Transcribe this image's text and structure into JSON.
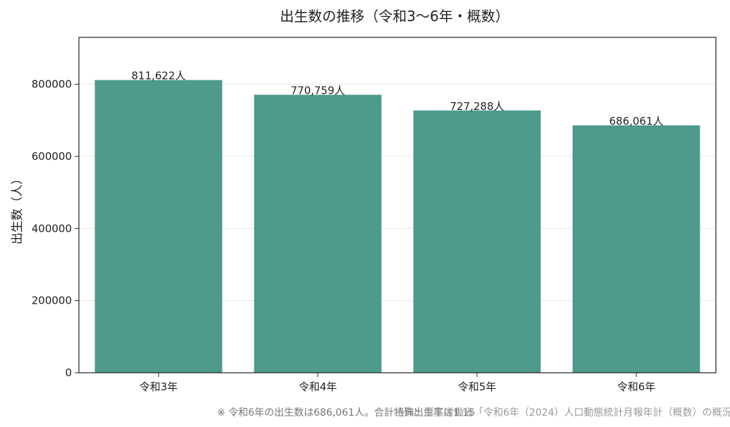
{
  "chart_data": {
    "type": "bar",
    "title": "出生数の推移（令和3〜6年・概数）",
    "ylabel": "出生数（人）",
    "xlabel": "",
    "categories": [
      "令和3年",
      "令和4年",
      "令和5年",
      "令和6年"
    ],
    "values": [
      811622,
      770759,
      727288,
      686061
    ],
    "data_labels": [
      "811,622人",
      "770,759人",
      "727,288人",
      "686,061人"
    ],
    "y_ticks": [
      0,
      200000,
      400000,
      600000,
      800000
    ],
    "ylim": [
      0,
      930000
    ],
    "grid": "horizontal",
    "bar_color": "#4e9a8d"
  },
  "notes": {
    "left": "※ 令和6年の出生数は686,061人。合計特殊出生率は1.15",
    "right": "出典：厚生労働省「令和6年（2024）人口動態統計月報年計（概数）の概況」"
  }
}
